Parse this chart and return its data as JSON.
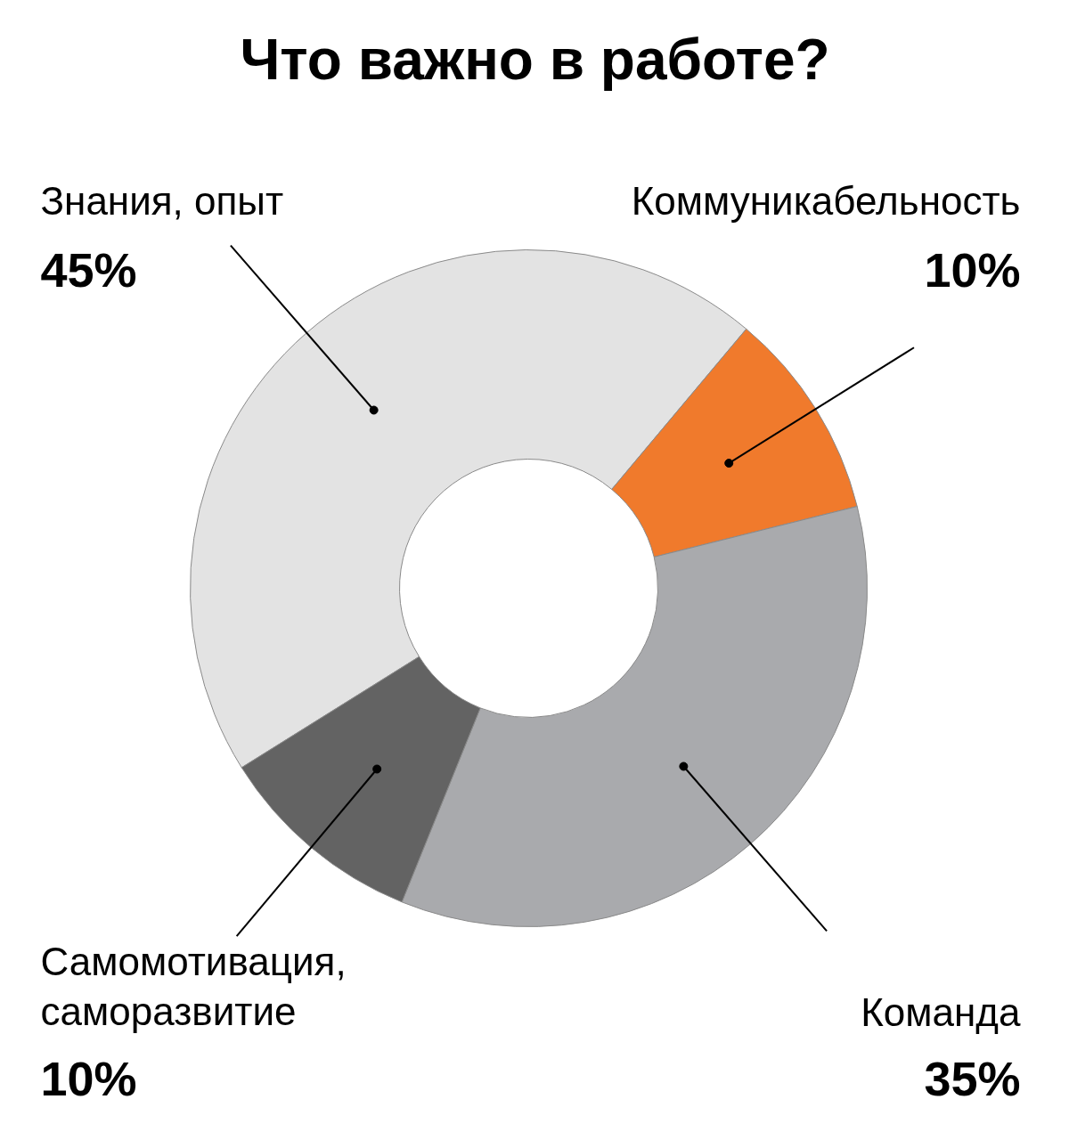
{
  "chart_data": {
    "type": "donut",
    "title": "Что важно в работе?",
    "categories": [
      "Знания, опыт",
      "Коммуникабельность",
      "Команда",
      "Самомотивация,\nсаморазвитие"
    ],
    "values": [
      45,
      10,
      35,
      10
    ],
    "value_labels": [
      "45%",
      "10%",
      "35%",
      "10%"
    ],
    "colors": [
      "#e3e3e3",
      "#f07a2c",
      "#a9aaad",
      "#636363"
    ]
  }
}
